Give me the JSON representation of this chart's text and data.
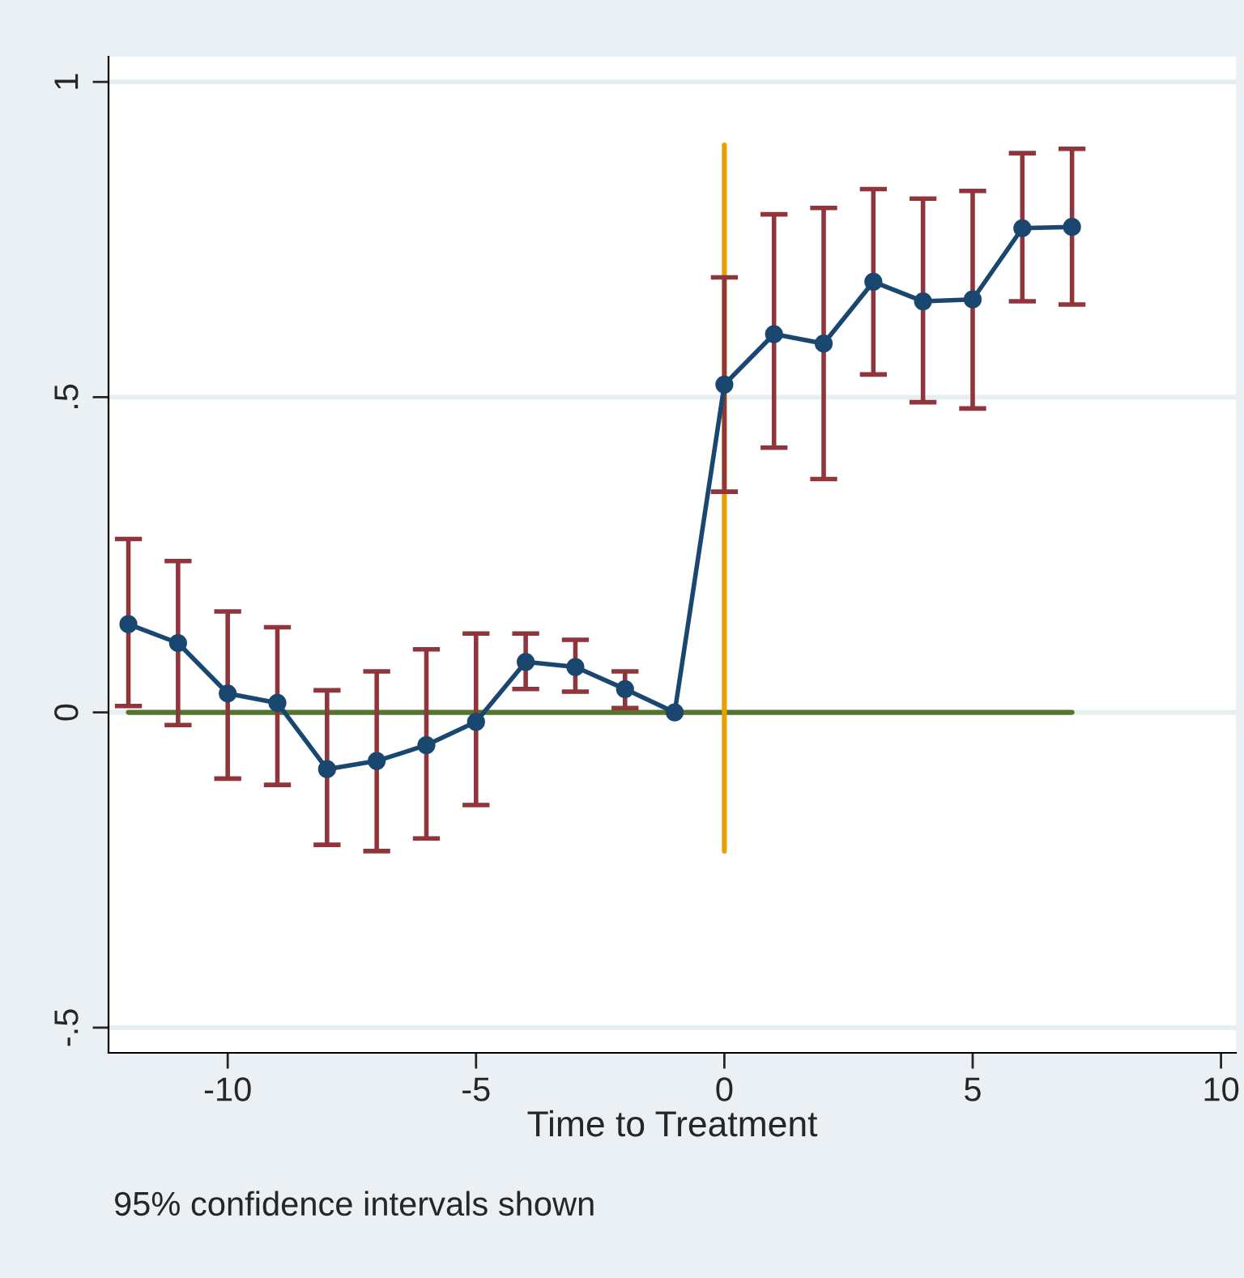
{
  "chart_data": {
    "type": "line",
    "xlabel": "Time to Treatment",
    "annotations": [
      "95% confidence intervals shown"
    ],
    "xlim": [
      -12.4,
      10.3
    ],
    "xticks": [
      -10,
      -5,
      0,
      5,
      10
    ],
    "ylim": [
      -0.54,
      1.04
    ],
    "yticks": [
      {
        "value": -0.5,
        "label": "-.5"
      },
      0,
      {
        "value": 0.5,
        "label": ".5"
      },
      1
    ],
    "grid": "y",
    "marker": "circle",
    "line_style": "solid",
    "series": [
      {
        "color": "#1a476f",
        "x": [
          -12,
          -11,
          -10,
          -9,
          -8,
          -7,
          -6,
          -5,
          -4,
          -3,
          -2,
          -1,
          0,
          1,
          2,
          3,
          4,
          5,
          6,
          7
        ],
        "values": [
          0.14,
          0.11,
          0.03,
          0.015,
          -0.09,
          -0.077,
          -0.052,
          -0.015,
          0.08,
          0.072,
          0.037,
          0,
          0.52,
          0.6,
          0.585,
          0.683,
          0.652,
          0.655,
          0.768,
          0.77
        ],
        "errors": [
          [
            0.01,
            0.275
          ],
          [
            -0.02,
            0.24
          ],
          [
            -0.105,
            0.16
          ],
          [
            -0.115,
            0.135
          ],
          [
            -0.21,
            0.035
          ],
          [
            -0.22,
            0.065
          ],
          [
            -0.2,
            0.1
          ],
          [
            -0.147,
            0.125
          ],
          [
            0.037,
            0.125
          ],
          [
            0.033,
            0.115
          ],
          [
            0.007,
            0.065
          ],
          null,
          [
            0.35,
            0.69
          ],
          [
            0.42,
            0.79
          ],
          [
            0.37,
            0.8
          ],
          [
            0.536,
            0.83
          ],
          [
            0.492,
            0.815
          ],
          [
            0.482,
            0.827
          ],
          [
            0.652,
            0.887
          ],
          [
            0.647,
            0.894
          ]
        ]
      },
      {
        "type": "line",
        "color": "#55752f",
        "marker": "none",
        "x": [
          -12,
          7
        ],
        "values": [
          0,
          0
        ]
      },
      {
        "type": "line",
        "color": "#e8a000",
        "marker": "none",
        "x": [
          0,
          0
        ],
        "values": [
          0.9,
          -0.22
        ]
      }
    ]
  }
}
